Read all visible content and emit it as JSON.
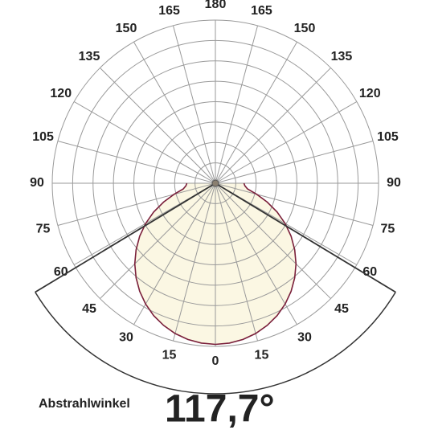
{
  "chart_data": {
    "type": "polar",
    "angle_ticks": [
      0,
      15,
      30,
      45,
      60,
      75,
      90,
      105,
      120,
      135,
      150,
      165,
      180
    ],
    "rlim": [
      0,
      8
    ],
    "rticks": [
      1,
      2,
      3,
      4,
      5,
      6,
      7,
      8
    ],
    "angles": [
      0,
      5,
      10,
      15,
      20,
      25,
      30,
      35,
      40,
      45,
      50,
      55,
      60,
      65,
      70,
      75,
      80,
      85,
      90
    ],
    "values": [
      7.9,
      7.87,
      7.78,
      7.63,
      7.42,
      7.16,
      6.84,
      6.47,
      6.05,
      5.59,
      5.08,
      4.53,
      3.95,
      3.34,
      2.7,
      2.1,
      1.6,
      1.45,
      1.4
    ],
    "color": "#7a1f3a",
    "fill": "#fbf7e3",
    "beam_angle": {
      "label": "Abstrahlwinkel",
      "value": 117.7,
      "value_label": "117,7°"
    }
  }
}
